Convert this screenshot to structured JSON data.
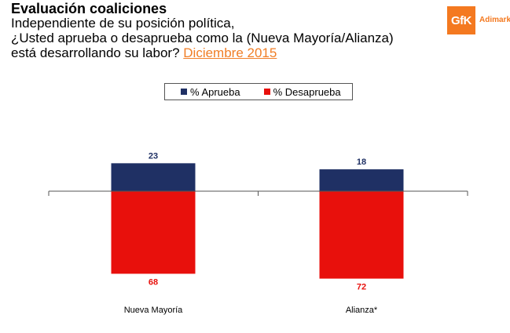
{
  "header": {
    "title": "Evaluación coaliciones",
    "question_lines": [
      "Independiente de su posición política,",
      "¿Usted aprueba o desaprueba como la (Nueva Mayoría/Alianza)"
    ],
    "question_tail": "está desarrollando su labor?",
    "date_link": "Diciembre 2015"
  },
  "logo": {
    "box_text": "GfK",
    "label": "Adimark",
    "color": "#f47920"
  },
  "chart_data": {
    "type": "bar",
    "title": "Evaluación coaliciones",
    "categories": [
      "Nueva Mayoría",
      "Alianza*"
    ],
    "series": [
      {
        "name": "% Aprueba",
        "values": [
          23,
          18
        ],
        "color": "#1f3064",
        "direction": "up"
      },
      {
        "name": "% Desaprueba",
        "values": [
          68,
          72
        ],
        "color": "#e8100c",
        "direction": "down"
      }
    ],
    "legend_position": "top-center",
    "xlabel": "",
    "ylabel": "",
    "baseline": 0
  }
}
